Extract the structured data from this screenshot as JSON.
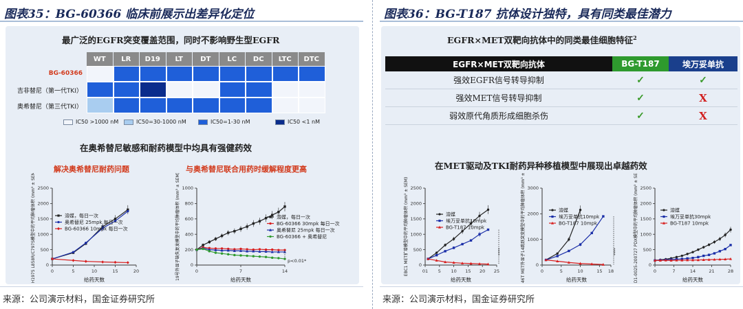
{
  "left": {
    "figure_title": "图表35：BG-60366 临床前展示出差异化定位",
    "heatmap_title": "最广泛的EGFR突变覆盖范围，同时不影响野生型EGFR",
    "section_title": "在奥希替尼敏感和耐药模型中均具有强健药效",
    "sub_title_left": "解决奥希替尼耐药问题",
    "sub_title_right": "与奥希替尼联合用药时缓解程度更高",
    "source": "来源：公司演示材料，国金证券研究所"
  },
  "right": {
    "figure_title": "图表36：BG-T187 抗体设计独特，具有同类最佳潜力",
    "table_title": "EGFR×MET双靶向抗体中的同类最佳细胞特征",
    "table_title_sup": "2",
    "section_title": "在MET驱动及TKI耐药异种移植模型中展现出卓越药效",
    "source": "来源：公司演示材料，国金证券研究所",
    "table": {
      "header": [
        "EGFR×MET双靶向抗体",
        "BG-T187",
        "埃万妥单抗"
      ],
      "rows": [
        {
          "label": "强效EGFR信号转导抑制",
          "a": "check",
          "b": "check"
        },
        {
          "label": "强效MET信号转导抑制",
          "a": "check",
          "b": "x"
        },
        {
          "label": "弱效原代角质形成细胞杀伤",
          "a": "check",
          "b": "x"
        }
      ],
      "check_glyph": "✓",
      "x_glyph": "X"
    }
  },
  "chart_data": [
    {
      "type": "heatmap",
      "title": "最广泛的EGFR突变覆盖范围，同时不影响野生型EGFR",
      "columns": [
        "WT",
        "LR",
        "D19",
        "LT",
        "DT",
        "LC",
        "DC",
        "LTC",
        "DTC"
      ],
      "rows": [
        "BG-60366",
        "吉非替尼（第一代TKI）",
        "奥希替尼（第三代TKI）"
      ],
      "levels": [
        [
          0,
          2,
          2,
          2,
          2,
          2,
          2,
          2,
          2
        ],
        [
          2,
          2,
          3,
          0,
          0,
          2,
          2,
          0,
          0
        ],
        [
          1,
          2,
          2,
          2,
          2,
          2,
          2,
          0,
          0
        ]
      ],
      "legend": [
        "IC50 >1000 nM",
        "IC50=30-1000 nM",
        "IC50=1-30 nM",
        "IC50 <1 nM"
      ],
      "colors": [
        "#f2f5fb",
        "#a9cdf0",
        "#1f5fd9",
        "#0a2c8c"
      ],
      "row_label_colors": [
        "#d23a1c",
        "#222222",
        "#222222"
      ]
    },
    {
      "type": "line",
      "title": "解决奥希替尼耐药问题",
      "xlabel": "给药天数",
      "ylabel": "H1975 L858R/C797S模型中的平均肿瘤体积 (mm³ ± SEM)",
      "xlim": [
        0,
        20
      ],
      "ylim": [
        0,
        2500
      ],
      "xticks": [
        0,
        5,
        10,
        15,
        20
      ],
      "yticks": [
        0,
        500,
        1000,
        1500,
        2000,
        2500
      ],
      "series": [
        {
          "name": "溶媒，每日一次",
          "color": "#222222",
          "marker": "square",
          "x": [
            0,
            5,
            8,
            12,
            15,
            18
          ],
          "y": [
            200,
            400,
            700,
            1250,
            1500,
            1800
          ]
        },
        {
          "name": "奥希替尼 25mpk 每日一次",
          "color": "#1b2fa8",
          "marker": "circle",
          "x": [
            0,
            5,
            8,
            12,
            15,
            18
          ],
          "y": [
            200,
            420,
            720,
            1200,
            1430,
            1750
          ]
        },
        {
          "name": "BG-60366 10mpk 每日一次",
          "color": "#d81e1e",
          "marker": "diamond",
          "x": [
            0,
            5,
            8,
            12,
            15,
            18
          ],
          "y": [
            200,
            150,
            120,
            100,
            90,
            80
          ]
        }
      ]
    },
    {
      "type": "line",
      "title": "与奥希替尼联合用药时缓解程度更高",
      "xlabel": "给药天数",
      "ylabel": "19号外显子缺失复发模型中的平均肿瘤体积 (mm³ ± SEM)",
      "xlim": [
        0,
        14
      ],
      "ylim": [
        0,
        1000
      ],
      "xticks": [
        0,
        7,
        14
      ],
      "yticks": [
        0,
        200,
        400,
        600,
        800,
        1000
      ],
      "annotation": "p<0.01*",
      "series": [
        {
          "name": "溶媒，每日一次",
          "color": "#222222",
          "marker": "square",
          "x": [
            0,
            1,
            2,
            3,
            4,
            5,
            6,
            7,
            8,
            9,
            10,
            11,
            12,
            13,
            14
          ],
          "y": [
            200,
            260,
            300,
            340,
            380,
            420,
            440,
            470,
            500,
            540,
            570,
            610,
            650,
            690,
            760
          ]
        },
        {
          "name": "BG-60366 30mpk 每日一次",
          "color": "#d81e1e",
          "marker": "circle",
          "x": [
            0,
            1,
            2,
            3,
            4,
            5,
            6,
            7,
            8,
            9,
            10,
            11,
            12,
            13,
            14
          ],
          "y": [
            200,
            230,
            220,
            215,
            215,
            210,
            205,
            210,
            205,
            200,
            205,
            200,
            200,
            195,
            195
          ]
        },
        {
          "name": "奥希替尼 25mpk 每日一次",
          "color": "#1b2fa8",
          "marker": "triangle",
          "x": [
            0,
            1,
            2,
            3,
            4,
            5,
            6,
            7,
            8,
            9,
            10,
            11,
            12,
            13,
            14
          ],
          "y": [
            200,
            220,
            200,
            195,
            190,
            190,
            185,
            185,
            180,
            180,
            175,
            175,
            170,
            170,
            170
          ]
        },
        {
          "name": "BG-60366 + 奥希替尼",
          "color": "#2e9a2e",
          "marker": "circle",
          "x": [
            0,
            1,
            2,
            3,
            4,
            5,
            6,
            7,
            8,
            9,
            10,
            11,
            12,
            13,
            14
          ],
          "y": [
            200,
            210,
            180,
            160,
            150,
            140,
            130,
            125,
            120,
            115,
            110,
            105,
            95,
            90,
            80
          ]
        }
      ]
    },
    {
      "type": "line",
      "title": "",
      "xlabel": "给药天数",
      "ylabel": "EBC1 MET扩增模型中的平均肿瘤体积 (mm³ ± SEM)",
      "xlim": [
        0,
        25
      ],
      "ylim": [
        0,
        2500
      ],
      "xticks": [
        0,
        5,
        10,
        15,
        20,
        25
      ],
      "xtick_labels": [
        "01",
        "5",
        "10",
        "15",
        "20",
        "25"
      ],
      "yticks": [
        0,
        500,
        1000,
        1500,
        2000,
        2500
      ],
      "annotation": "****",
      "series": [
        {
          "name": "溶媒",
          "color": "#222222",
          "marker": "circle",
          "x": [
            1,
            4,
            7,
            10,
            13,
            16,
            19,
            22
          ],
          "y": [
            200,
            400,
            650,
            850,
            1100,
            1350,
            1600,
            1800
          ]
        },
        {
          "name": "埃万妥单抗10mpk",
          "color": "#1b2fa8",
          "marker": "square",
          "x": [
            1,
            4,
            7,
            10,
            13,
            16,
            19,
            22
          ],
          "y": [
            200,
            320,
            450,
            560,
            680,
            800,
            1000,
            1150
          ]
        },
        {
          "name": "BG-T187 10mpk",
          "color": "#d81e1e",
          "marker": "triangle",
          "x": [
            1,
            4,
            7,
            10,
            13,
            16,
            19,
            22
          ],
          "y": [
            200,
            150,
            100,
            80,
            60,
            50,
            40,
            30
          ]
        }
      ]
    },
    {
      "type": "line",
      "title": "",
      "xlabel": "给药天数",
      "ylabel": "Hs-746T MET外显子14跳跃突变模型中的平均肿瘤体积 (mm³ ± SEM)",
      "xlim": [
        0,
        18
      ],
      "ylim": [
        0,
        3000
      ],
      "xticks": [
        0,
        5,
        10,
        15,
        18
      ],
      "yticks": [
        0,
        1000,
        2000,
        3000
      ],
      "annotation": "****",
      "series": [
        {
          "name": "溶媒",
          "color": "#222222",
          "marker": "circle",
          "x": [
            1,
            4,
            7,
            10
          ],
          "y": [
            200,
            450,
            1000,
            2150
          ]
        },
        {
          "name": "埃万妥单抗10mpk",
          "color": "#1b2fa8",
          "marker": "square",
          "x": [
            1,
            4,
            7,
            10,
            13,
            16
          ],
          "y": [
            200,
            350,
            550,
            800,
            1250,
            1900
          ]
        },
        {
          "name": "BG-T187 10mpk",
          "color": "#d81e1e",
          "marker": "triangle",
          "x": [
            1,
            4,
            7,
            10,
            13,
            16
          ],
          "y": [
            200,
            150,
            100,
            60,
            40,
            20
          ]
        }
      ]
    },
    {
      "type": "line",
      "title": "",
      "xlabel": "给药天数",
      "ylabel": "LD1-0025-200727 PDX模型中的平均肿瘤体积 (mm³ ± SEM)",
      "xlim": [
        0,
        28
      ],
      "ylim": [
        0,
        2500
      ],
      "xticks": [
        0,
        7,
        14,
        21,
        28
      ],
      "yticks": [
        0,
        500,
        1000,
        1500,
        2000,
        2500
      ],
      "series": [
        {
          "name": "溶媒",
          "color": "#222222",
          "marker": "circle",
          "x": [
            0,
            2,
            4,
            6,
            8,
            10,
            12,
            14,
            16,
            18,
            20,
            22,
            24,
            26,
            28
          ],
          "y": [
            150,
            170,
            190,
            220,
            260,
            300,
            360,
            420,
            500,
            580,
            660,
            750,
            850,
            980,
            1150
          ]
        },
        {
          "name": "埃万妥单抗30mpk",
          "color": "#1b2fa8",
          "marker": "square",
          "x": [
            0,
            2,
            4,
            6,
            8,
            10,
            12,
            14,
            16,
            18,
            20,
            22,
            24,
            26,
            28
          ],
          "y": [
            150,
            160,
            170,
            180,
            190,
            200,
            215,
            230,
            260,
            300,
            330,
            380,
            450,
            520,
            650
          ]
        },
        {
          "name": "BG-T187 10mpk",
          "color": "#d81e1e",
          "marker": "triangle",
          "x": [
            0,
            2,
            4,
            6,
            8,
            10,
            12,
            14,
            16,
            18,
            20,
            22,
            24,
            26,
            28
          ],
          "y": [
            150,
            150,
            155,
            150,
            155,
            155,
            160,
            160,
            165,
            170,
            175,
            180,
            185,
            190,
            200
          ]
        }
      ]
    }
  ]
}
